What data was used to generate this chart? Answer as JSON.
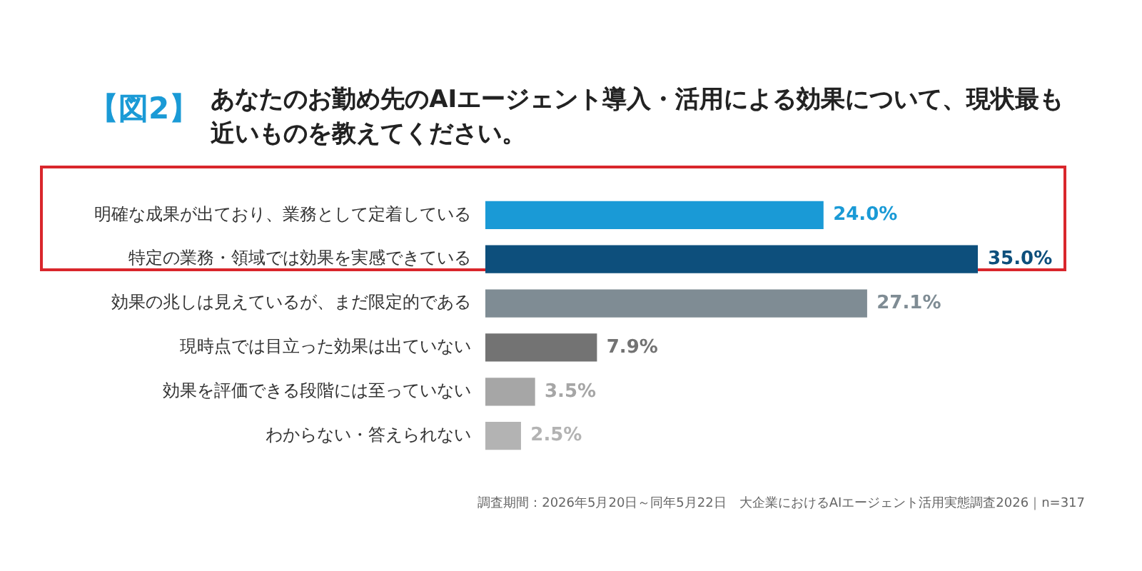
{
  "chart_data": {
    "type": "bar",
    "orientation": "horizontal",
    "title": "【図2】",
    "subtitle": "あなたのお勤め先のAIエージェント導入・活用による効果について、現状最も近いものを教えてください。",
    "categories": [
      "明確な成果が出ており、業務として定着している",
      "特定の業務・領域では効果を実感できている",
      "効果の兆しは見えているが、まだ限定的である",
      "現時点では目立った効果は出ていない",
      "効果を評価できる段階には至っていない",
      "わからない・答えられない"
    ],
    "values": [
      24.0,
      35.0,
      27.1,
      7.9,
      3.5,
      2.5
    ],
    "colors": [
      "#1a9ad6",
      "#0d4f7c",
      "#7f8c94",
      "#737373",
      "#a6a6a6",
      "#b3b3b3"
    ],
    "value_labels": [
      "24.0%",
      "35.0%",
      "27.1%",
      "7.9%",
      "3.5%",
      "2.5%"
    ],
    "annotations": [
      "調査期間：2026年5月20日～同年5月22日　大企業におけるAIエージェント活用実態調査2026｜n=317"
    ],
    "grid": false,
    "legend": false
  }
}
